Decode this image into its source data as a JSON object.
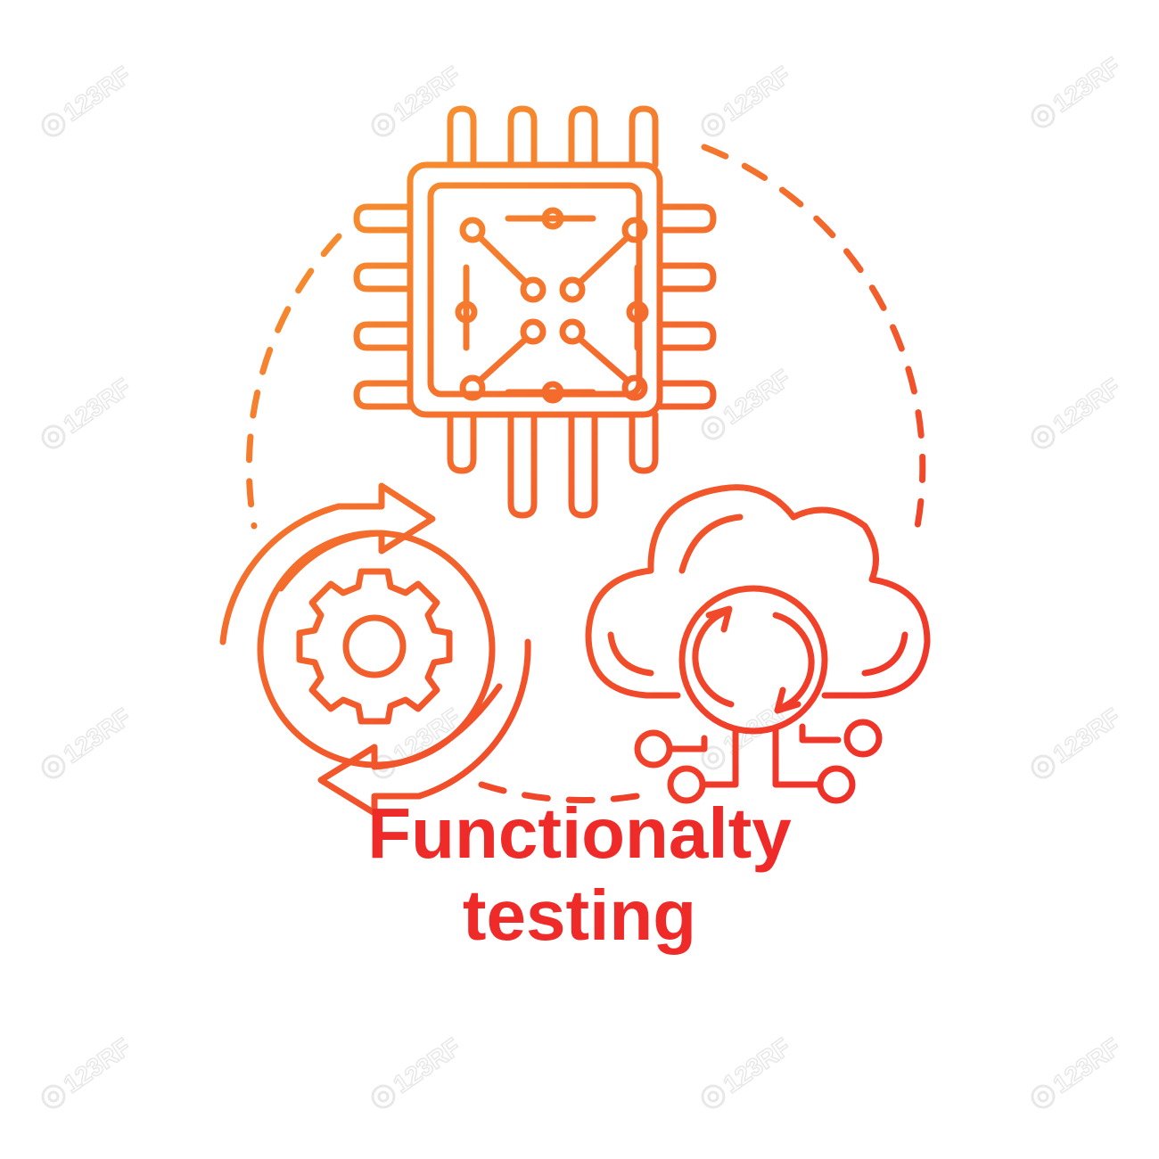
{
  "caption": {
    "line_1": "Functionalty",
    "line_2": "testing"
  },
  "watermark": "123RF",
  "icons": [
    "microchip-icon",
    "gear-icon",
    "cycle-arrows-icon",
    "cloud-sync-icon",
    "dashed-circle"
  ],
  "colors": {
    "gradient_start": "#f7952f",
    "gradient_end": "#ee2b28",
    "caption": "#ee2b28",
    "watermark": "#e6e6e6"
  }
}
